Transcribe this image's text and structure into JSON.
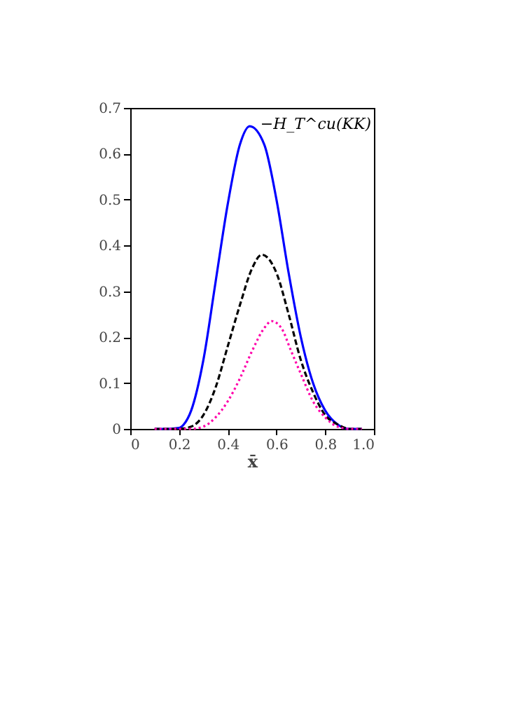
{
  "chart_data": {
    "type": "line",
    "xlabel": "x̄",
    "annotations": [
      "−H_T^cu(KK)"
    ],
    "xlim": [
      0,
      1
    ],
    "ylim": [
      0,
      0.7
    ],
    "xticks": [
      0,
      0.2,
      0.4,
      0.6,
      0.8,
      {
        "value": 1,
        "label": "1.0"
      }
    ],
    "yticks": [
      0,
      0.1,
      0.2,
      0.3,
      0.4,
      0.5,
      0.6,
      0.7
    ],
    "grid": false,
    "series": [
      {
        "color": "#0000ff",
        "line_style": "solid",
        "x": [
          0.1,
          0.15,
          0.2,
          0.22,
          0.25,
          0.3,
          0.35,
          0.4,
          0.45,
          0.49,
          0.55,
          0.6,
          0.65,
          0.7,
          0.75,
          0.8,
          0.85,
          0.9,
          0.95
        ],
        "values": [
          0,
          0,
          0.002,
          0.01,
          0.04,
          0.15,
          0.32,
          0.49,
          0.62,
          0.66,
          0.62,
          0.5,
          0.34,
          0.2,
          0.1,
          0.04,
          0.01,
          0,
          0
        ]
      },
      {
        "color": "#000000",
        "line_style": "dashed",
        "x": [
          0.1,
          0.2,
          0.25,
          0.3,
          0.35,
          0.4,
          0.45,
          0.5,
          0.54,
          0.6,
          0.65,
          0.7,
          0.75,
          0.8,
          0.85,
          0.9,
          0.95
        ],
        "values": [
          0,
          0,
          0.005,
          0.03,
          0.09,
          0.18,
          0.27,
          0.35,
          0.38,
          0.34,
          0.25,
          0.15,
          0.08,
          0.03,
          0.01,
          0,
          0
        ]
      },
      {
        "color": "#ff00aa",
        "line_style": "dotted",
        "x": [
          0.1,
          0.25,
          0.3,
          0.35,
          0.4,
          0.45,
          0.5,
          0.55,
          0.58,
          0.62,
          0.66,
          0.7,
          0.75,
          0.8,
          0.85,
          0.9,
          0.95
        ],
        "values": [
          0,
          0,
          0.005,
          0.025,
          0.06,
          0.11,
          0.17,
          0.22,
          0.235,
          0.22,
          0.17,
          0.12,
          0.06,
          0.025,
          0.005,
          0,
          0
        ]
      }
    ]
  }
}
